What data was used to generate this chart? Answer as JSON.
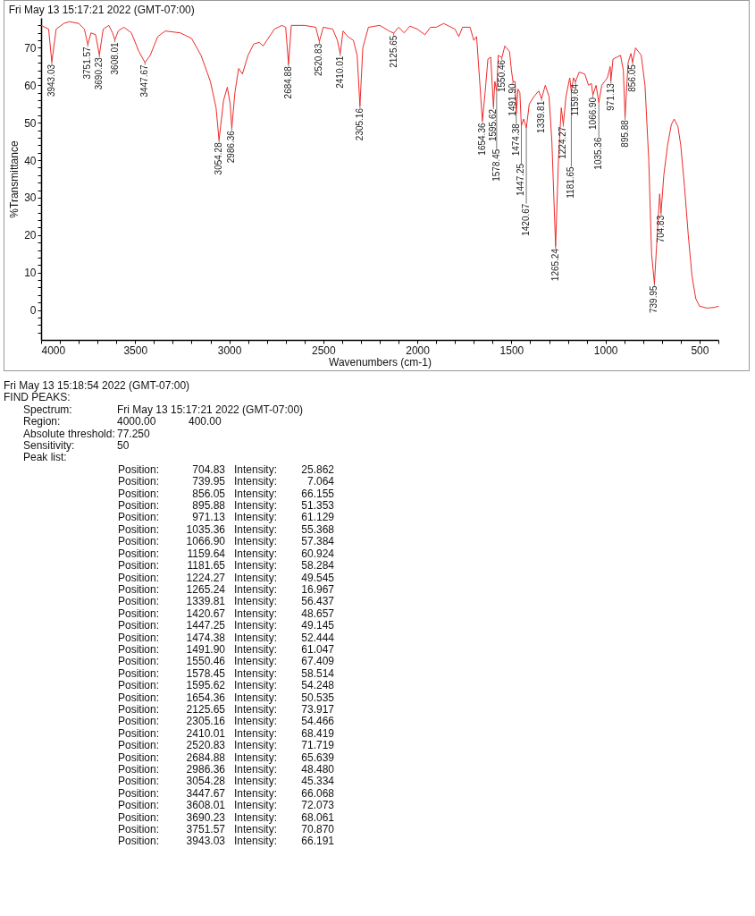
{
  "chart_data": {
    "type": "line",
    "title": "Fri May 13 15:17:21 2022 (GMT-07:00)",
    "xlabel": "Wavenumbers (cm-1)",
    "ylabel": "%Transmittance",
    "x": [
      4000,
      3960,
      3943.03,
      3920,
      3880,
      3850,
      3800,
      3770,
      3751.57,
      3735,
      3710,
      3690.23,
      3670,
      3640,
      3620,
      3608.01,
      3590,
      3560,
      3520,
      3480,
      3447.67,
      3420,
      3380,
      3340,
      3260,
      3200,
      3150,
      3100,
      3070,
      3054.28,
      3030,
      3010,
      2995,
      2986.36,
      2970,
      2950,
      2930,
      2900,
      2870,
      2840,
      2820,
      2800,
      2760,
      2720,
      2700,
      2684.88,
      2670,
      2600,
      2540,
      2520.83,
      2500,
      2450,
      2425,
      2410.01,
      2395,
      2370,
      2340,
      2320,
      2305.16,
      2290,
      2260,
      2200,
      2150,
      2125.65,
      2100,
      2070,
      2040,
      2000,
      1960,
      1930,
      1900,
      1860,
      1800,
      1780,
      1760,
      1720,
      1700,
      1685,
      1670,
      1654.36,
      1640,
      1625,
      1610,
      1595.62,
      1588,
      1578.45,
      1570,
      1550.46,
      1535,
      1510,
      1500,
      1491.9,
      1480,
      1474.38,
      1465,
      1455,
      1447.25,
      1435,
      1420.67,
      1405,
      1380,
      1355,
      1339.81,
      1320,
      1300,
      1285,
      1265.24,
      1250,
      1235,
      1224.27,
      1210,
      1190,
      1181.65,
      1170,
      1159.64,
      1140,
      1110,
      1090,
      1075,
      1066.9,
      1050,
      1035.36,
      1020,
      990,
      975,
      971.13,
      960,
      940,
      920,
      905,
      895.88,
      880,
      865,
      856.05,
      840,
      810,
      790,
      770,
      755,
      739.95,
      725,
      712,
      704.83,
      690,
      670,
      650,
      635,
      615,
      600,
      580,
      560,
      540,
      520,
      500,
      460,
      420,
      400
    ],
    "series": [
      {
        "color": "#ee2a2a",
        "values": [
          76,
          75,
          66.191,
          75,
          76.5,
          77,
          76.5,
          75,
          70.87,
          74,
          73.5,
          68.061,
          75,
          76,
          74,
          72.073,
          74.5,
          75.5,
          74,
          69,
          66.068,
          68,
          73,
          74.5,
          74,
          72.5,
          68,
          61,
          54,
          45.334,
          56,
          59.5,
          55,
          48.48,
          58,
          64.5,
          63,
          68,
          71,
          71.5,
          70.5,
          72,
          75,
          76,
          75.5,
          65.639,
          76,
          76,
          75.5,
          71.719,
          75.5,
          75,
          72,
          68.419,
          74.5,
          73,
          72,
          68,
          54.466,
          70,
          75.5,
          76,
          74.5,
          73.917,
          75.5,
          74,
          75.8,
          75,
          73.5,
          75.5,
          75.5,
          76.5,
          75,
          73,
          75.5,
          75.5,
          72,
          73,
          62,
          50.535,
          58,
          67,
          67.5,
          54.248,
          61,
          58.514,
          68,
          67.409,
          70.5,
          69,
          64,
          61.047,
          61,
          52.444,
          59,
          58,
          49.145,
          51,
          48.657,
          55,
          57,
          58.5,
          56.437,
          60,
          57,
          45,
          16.967,
          40,
          54,
          49.545,
          57,
          62,
          58.284,
          62,
          60.924,
          63.5,
          63,
          60,
          60.5,
          57.384,
          60,
          55.368,
          60,
          62,
          65,
          61.129,
          67,
          67.5,
          68,
          64,
          51.353,
          66,
          68.5,
          66.155,
          70,
          68,
          60,
          40,
          15,
          7.064,
          20,
          31,
          25.862,
          36,
          44,
          49.5,
          51,
          49,
          44,
          33,
          20,
          9,
          3,
          1,
          0.5,
          0.7,
          1
        ]
      }
    ],
    "xlim": [
      4000,
      400
    ],
    "xticks": [
      4000,
      {
        "value": 3900,
        "label": null
      },
      {
        "value": 3800,
        "label": null
      },
      {
        "value": 3700,
        "label": null
      },
      {
        "value": 3600,
        "label": null
      },
      3500,
      {
        "value": 3400,
        "label": null
      },
      {
        "value": 3300,
        "label": null
      },
      {
        "value": 3200,
        "label": null
      },
      {
        "value": 3100,
        "label": null
      },
      3000,
      {
        "value": 2900,
        "label": null
      },
      {
        "value": 2800,
        "label": null
      },
      {
        "value": 2700,
        "label": null
      },
      {
        "value": 2600,
        "label": null
      },
      2500,
      {
        "value": 2400,
        "label": null
      },
      {
        "value": 2300,
        "label": null
      },
      {
        "value": 2200,
        "label": null
      },
      {
        "value": 2100,
        "label": null
      },
      2000,
      {
        "value": 1900,
        "label": null
      },
      {
        "value": 1800,
        "label": null
      },
      {
        "value": 1700,
        "label": null
      },
      {
        "value": 1600,
        "label": null
      },
      1500,
      {
        "value": 1400,
        "label": null
      },
      {
        "value": 1300,
        "label": null
      },
      {
        "value": 1200,
        "label": null
      },
      {
        "value": 1100,
        "label": null
      },
      1000,
      {
        "value": 900,
        "label": null
      },
      {
        "value": 800,
        "label": null
      },
      {
        "value": 700,
        "label": null
      },
      {
        "value": 600,
        "label": null
      },
      500,
      {
        "value": 400,
        "label": null
      }
    ],
    "ylim": [
      -8,
      78
    ],
    "yticks": [
      {
        "value": -6,
        "label": null
      },
      {
        "value": -4,
        "label": null
      },
      {
        "value": -2,
        "label": null
      },
      0,
      {
        "value": 2,
        "label": null
      },
      {
        "value": 4,
        "label": null
      },
      {
        "value": 6,
        "label": null
      },
      {
        "value": 8,
        "label": null
      },
      10,
      {
        "value": 12,
        "label": null
      },
      {
        "value": 14,
        "label": null
      },
      {
        "value": 16,
        "label": null
      },
      {
        "value": 18,
        "label": null
      },
      20,
      {
        "value": 22,
        "label": null
      },
      {
        "value": 24,
        "label": null
      },
      {
        "value": 26,
        "label": null
      },
      {
        "value": 28,
        "label": null
      },
      30,
      {
        "value": 32,
        "label": null
      },
      {
        "value": 34,
        "label": null
      },
      {
        "value": 36,
        "label": null
      },
      {
        "value": 38,
        "label": null
      },
      40,
      {
        "value": 42,
        "label": null
      },
      {
        "value": 44,
        "label": null
      },
      {
        "value": 46,
        "label": null
      },
      {
        "value": 48,
        "label": null
      },
      50,
      {
        "value": 52,
        "label": null
      },
      {
        "value": 54,
        "label": null
      },
      {
        "value": 56,
        "label": null
      },
      {
        "value": 58,
        "label": null
      },
      60,
      {
        "value": 62,
        "label": null
      },
      {
        "value": 64,
        "label": null
      },
      {
        "value": 66,
        "label": null
      },
      {
        "value": 68,
        "label": null
      },
      70,
      {
        "value": 72,
        "label": null
      },
      {
        "value": 74,
        "label": null
      },
      {
        "value": 76,
        "label": null
      }
    ],
    "marker": "none",
    "line_style": "solid",
    "annotations": [
      {
        "text": "3943.03",
        "x": 3943.03,
        "y": 66.191
      },
      {
        "text": "3751.57",
        "x": 3751.57,
        "y": 70.87
      },
      {
        "text": "3690.23",
        "x": 3690.23,
        "y": 68.061
      },
      {
        "text": "3608.01",
        "x": 3608.01,
        "y": 72.073
      },
      {
        "text": "3447.67",
        "x": 3447.67,
        "y": 66.068
      },
      {
        "text": "3054.28",
        "x": 3054.28,
        "y": 45.334
      },
      {
        "text": "2986.36",
        "x": 2986.36,
        "y": 48.48
      },
      {
        "text": "2684.88",
        "x": 2684.88,
        "y": 65.639
      },
      {
        "text": "2520.83",
        "x": 2520.83,
        "y": 71.719
      },
      {
        "text": "2410.01",
        "x": 2410.01,
        "y": 68.419
      },
      {
        "text": "2305.16",
        "x": 2305.16,
        "y": 54.466
      },
      {
        "text": "2125.65",
        "x": 2125.65,
        "y": 73.917
      },
      {
        "text": "1654.36",
        "x": 1654.36,
        "y": 50.535
      },
      {
        "text": "1595.62",
        "x": 1595.62,
        "y": 54.248
      },
      {
        "text": "1578.45",
        "x": 1578.45,
        "y": 58.514
      },
      {
        "text": "1550.46",
        "x": 1550.46,
        "y": 67.409
      },
      {
        "text": "1491.90",
        "x": 1491.9,
        "y": 61.047
      },
      {
        "text": "1474.38",
        "x": 1474.38,
        "y": 52.444
      },
      {
        "text": "1447.25",
        "x": 1447.25,
        "y": 49.145
      },
      {
        "text": "1420.67",
        "x": 1420.67,
        "y": 48.657
      },
      {
        "text": "1339.81",
        "x": 1339.81,
        "y": 56.437
      },
      {
        "text": "1265.24",
        "x": 1265.24,
        "y": 16.967
      },
      {
        "text": "1224.27",
        "x": 1224.27,
        "y": 49.545
      },
      {
        "text": "1181.65",
        "x": 1181.65,
        "y": 58.284
      },
      {
        "text": "1159.64",
        "x": 1159.64,
        "y": 60.924
      },
      {
        "text": "1066.90",
        "x": 1066.9,
        "y": 57.384
      },
      {
        "text": "1035.36",
        "x": 1035.36,
        "y": 55.368
      },
      {
        "text": "971.13",
        "x": 971.13,
        "y": 61.129
      },
      {
        "text": "895.88",
        "x": 895.88,
        "y": 51.353
      },
      {
        "text": "856.05",
        "x": 856.05,
        "y": 66.155
      },
      {
        "text": "739.95",
        "x": 739.95,
        "y": 7.064
      },
      {
        "text": "704.83",
        "x": 704.83,
        "y": 25.862
      },
      "Fri May 13 15:18:54 2022 (GMT-07:00)",
      "FIND PEAKS:",
      "Spectrum:\tFri May 13 15:17:21 2022 (GMT-07:00)",
      "Region:\t4000.00\t400.00",
      "Absolute threshold:\t77.250",
      "Sensitivity:\t50",
      "Peak list:",
      "Position:\t704.83\tIntensity:\t25.862",
      "Position:\t739.95\tIntensity:\t7.064",
      "Position:\t856.05\tIntensity:\t66.155",
      "Position:\t895.88\tIntensity:\t51.353",
      "Position:\t971.13\tIntensity:\t61.129",
      "Position:\t1035.36\tIntensity:\t55.368",
      "Position:\t1066.90\tIntensity:\t57.384",
      "Position:\t1159.64\tIntensity:\t60.924",
      "Position:\t1181.65\tIntensity:\t58.284",
      "Position:\t1224.27\tIntensity:\t49.545",
      "Position:\t1265.24\tIntensity:\t16.967",
      "Position:\t1339.81\tIntensity:\t56.437",
      "Position:\t1420.67\tIntensity:\t48.657",
      "Position:\t1447.25\tIntensity:\t49.145",
      "Position:\t1474.38\tIntensity:\t52.444",
      "Position:\t1491.90\tIntensity:\t61.047",
      "Position:\t1550.46\tIntensity:\t67.409",
      "Position:\t1578.45\tIntensity:\t58.514",
      "Position:\t1595.62\tIntensity:\t54.248",
      "Position:\t1654.36\tIntensity:\t50.535",
      "Position:\t2125.65\tIntensity:\t73.917",
      "Position:\t2305.16\tIntensity:\t54.466",
      "Position:\t2410.01\tIntensity:\t68.419",
      "Position:\t2520.83\tIntensity:\t71.719",
      "Position:\t2684.88\tIntensity:\t65.639",
      "Position:\t2986.36\tIntensity:\t48.480",
      "Position:\t3054.28\tIntensity:\t45.334",
      "Position:\t3447.67\tIntensity:\t66.068",
      "Position:\t3608.01\tIntensity:\t72.073",
      "Position:\t3690.23\tIntensity:\t68.061",
      "Position:\t3751.57\tIntensity:\t70.870",
      "Position:\t3943.03\tIntensity:\t66.191"
    ]
  }
}
